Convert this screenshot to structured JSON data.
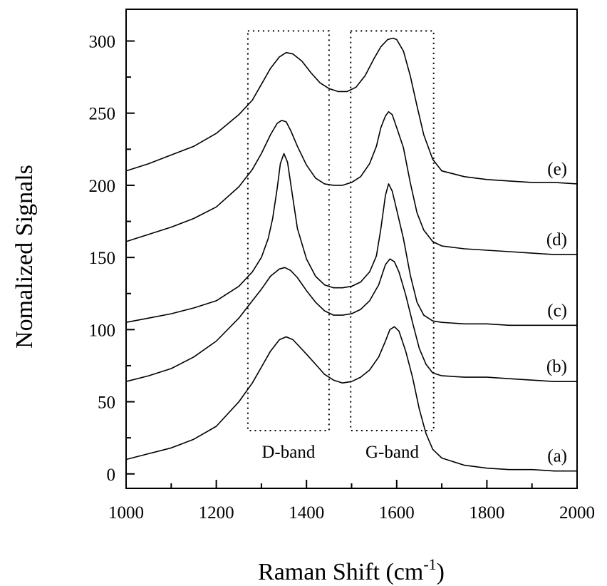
{
  "chart_data": {
    "type": "line",
    "title": "",
    "xlabel": "Raman Shift (cm",
    "xlabel_sup": "-1",
    "xlabel_end": ")",
    "ylabel": "Nomalized Signals",
    "xlim": [
      1000,
      2000
    ],
    "ylim": [
      -10,
      322
    ],
    "xticks": [
      1000,
      1200,
      1400,
      1600,
      1800,
      2000
    ],
    "yticks": [
      0,
      50,
      100,
      150,
      200,
      250,
      300
    ],
    "grid": false,
    "legend": "none",
    "line_color": "#000000",
    "series": [
      {
        "label": "(a)",
        "points": [
          [
            1000,
            10
          ],
          [
            1050,
            14
          ],
          [
            1100,
            18
          ],
          [
            1125,
            21
          ],
          [
            1150,
            24
          ],
          [
            1200,
            33
          ],
          [
            1250,
            50
          ],
          [
            1280,
            63
          ],
          [
            1300,
            74
          ],
          [
            1320,
            85
          ],
          [
            1340,
            93
          ],
          [
            1355,
            95
          ],
          [
            1370,
            93
          ],
          [
            1400,
            83
          ],
          [
            1420,
            76
          ],
          [
            1440,
            69
          ],
          [
            1460,
            65
          ],
          [
            1480,
            63
          ],
          [
            1500,
            64
          ],
          [
            1520,
            67
          ],
          [
            1540,
            72
          ],
          [
            1560,
            81
          ],
          [
            1575,
            92
          ],
          [
            1585,
            100
          ],
          [
            1595,
            102
          ],
          [
            1605,
            99
          ],
          [
            1620,
            85
          ],
          [
            1635,
            67
          ],
          [
            1650,
            45
          ],
          [
            1665,
            28
          ],
          [
            1680,
            17
          ],
          [
            1700,
            11
          ],
          [
            1750,
            6
          ],
          [
            1800,
            4
          ],
          [
            1850,
            3
          ],
          [
            1900,
            3
          ],
          [
            1950,
            2
          ],
          [
            2000,
            2
          ]
        ]
      },
      {
        "label": "(b)",
        "points": [
          [
            1000,
            64
          ],
          [
            1050,
            68
          ],
          [
            1100,
            73
          ],
          [
            1150,
            81
          ],
          [
            1200,
            92
          ],
          [
            1250,
            108
          ],
          [
            1280,
            120
          ],
          [
            1300,
            128
          ],
          [
            1320,
            137
          ],
          [
            1340,
            142
          ],
          [
            1352,
            143
          ],
          [
            1365,
            141
          ],
          [
            1380,
            136
          ],
          [
            1400,
            127
          ],
          [
            1420,
            119
          ],
          [
            1440,
            113
          ],
          [
            1460,
            110
          ],
          [
            1480,
            110
          ],
          [
            1500,
            111
          ],
          [
            1520,
            114
          ],
          [
            1540,
            120
          ],
          [
            1560,
            131
          ],
          [
            1575,
            145
          ],
          [
            1585,
            149
          ],
          [
            1595,
            147
          ],
          [
            1605,
            140
          ],
          [
            1620,
            124
          ],
          [
            1635,
            105
          ],
          [
            1650,
            87
          ],
          [
            1665,
            76
          ],
          [
            1680,
            70
          ],
          [
            1700,
            68
          ],
          [
            1750,
            67
          ],
          [
            1800,
            67
          ],
          [
            1850,
            66
          ],
          [
            1900,
            65
          ],
          [
            1950,
            64
          ],
          [
            2000,
            64
          ]
        ]
      },
      {
        "label": "(c)",
        "points": [
          [
            1000,
            105
          ],
          [
            1050,
            108
          ],
          [
            1100,
            111
          ],
          [
            1150,
            115
          ],
          [
            1200,
            120
          ],
          [
            1250,
            130
          ],
          [
            1280,
            140
          ],
          [
            1300,
            150
          ],
          [
            1315,
            163
          ],
          [
            1325,
            177
          ],
          [
            1335,
            198
          ],
          [
            1342,
            215
          ],
          [
            1350,
            222
          ],
          [
            1358,
            216
          ],
          [
            1368,
            195
          ],
          [
            1380,
            170
          ],
          [
            1400,
            149
          ],
          [
            1420,
            137
          ],
          [
            1440,
            131
          ],
          [
            1460,
            129
          ],
          [
            1480,
            129
          ],
          [
            1500,
            130
          ],
          [
            1520,
            133
          ],
          [
            1540,
            140
          ],
          [
            1555,
            151
          ],
          [
            1565,
            170
          ],
          [
            1575,
            193
          ],
          [
            1582,
            201
          ],
          [
            1590,
            196
          ],
          [
            1600,
            183
          ],
          [
            1615,
            163
          ],
          [
            1630,
            138
          ],
          [
            1645,
            119
          ],
          [
            1660,
            110
          ],
          [
            1680,
            106
          ],
          [
            1700,
            105
          ],
          [
            1750,
            104
          ],
          [
            1800,
            104
          ],
          [
            1850,
            103
          ],
          [
            1900,
            103
          ],
          [
            1950,
            103
          ],
          [
            2000,
            103
          ]
        ]
      },
      {
        "label": "(d)",
        "points": [
          [
            1000,
            161
          ],
          [
            1050,
            166
          ],
          [
            1100,
            171
          ],
          [
            1150,
            177
          ],
          [
            1200,
            185
          ],
          [
            1250,
            199
          ],
          [
            1280,
            211
          ],
          [
            1300,
            222
          ],
          [
            1320,
            235
          ],
          [
            1335,
            243
          ],
          [
            1345,
            245
          ],
          [
            1355,
            244
          ],
          [
            1365,
            238
          ],
          [
            1380,
            227
          ],
          [
            1400,
            214
          ],
          [
            1420,
            205
          ],
          [
            1440,
            201
          ],
          [
            1460,
            200
          ],
          [
            1480,
            200
          ],
          [
            1500,
            202
          ],
          [
            1520,
            206
          ],
          [
            1540,
            215
          ],
          [
            1555,
            227
          ],
          [
            1565,
            240
          ],
          [
            1575,
            248
          ],
          [
            1582,
            251
          ],
          [
            1590,
            249
          ],
          [
            1600,
            240
          ],
          [
            1615,
            226
          ],
          [
            1630,
            202
          ],
          [
            1645,
            181
          ],
          [
            1660,
            169
          ],
          [
            1680,
            161
          ],
          [
            1700,
            158
          ],
          [
            1750,
            156
          ],
          [
            1800,
            155
          ],
          [
            1850,
            154
          ],
          [
            1900,
            153
          ],
          [
            1950,
            152
          ],
          [
            2000,
            152
          ]
        ]
      },
      {
        "label": "(e)",
        "points": [
          [
            1000,
            210
          ],
          [
            1050,
            215
          ],
          [
            1100,
            221
          ],
          [
            1150,
            227
          ],
          [
            1200,
            236
          ],
          [
            1250,
            249
          ],
          [
            1280,
            259
          ],
          [
            1300,
            270
          ],
          [
            1320,
            281
          ],
          [
            1340,
            289
          ],
          [
            1355,
            292
          ],
          [
            1370,
            291
          ],
          [
            1390,
            286
          ],
          [
            1410,
            278
          ],
          [
            1430,
            271
          ],
          [
            1450,
            267
          ],
          [
            1470,
            265
          ],
          [
            1490,
            265
          ],
          [
            1510,
            268
          ],
          [
            1530,
            276
          ],
          [
            1550,
            288
          ],
          [
            1565,
            296
          ],
          [
            1580,
            301
          ],
          [
            1592,
            302
          ],
          [
            1600,
            301
          ],
          [
            1615,
            293
          ],
          [
            1630,
            276
          ],
          [
            1645,
            255
          ],
          [
            1660,
            235
          ],
          [
            1680,
            218
          ],
          [
            1700,
            210
          ],
          [
            1750,
            206
          ],
          [
            1800,
            204
          ],
          [
            1850,
            203
          ],
          [
            1900,
            202
          ],
          [
            1950,
            202
          ],
          [
            2000,
            201
          ]
        ]
      }
    ],
    "annotations": [
      {
        "label": "D-band",
        "x_range": [
          1270,
          1450
        ],
        "y_range": [
          30,
          307
        ]
      },
      {
        "label": "G-band",
        "x_range": [
          1498,
          1682
        ],
        "y_range": [
          30,
          307
        ]
      }
    ]
  }
}
